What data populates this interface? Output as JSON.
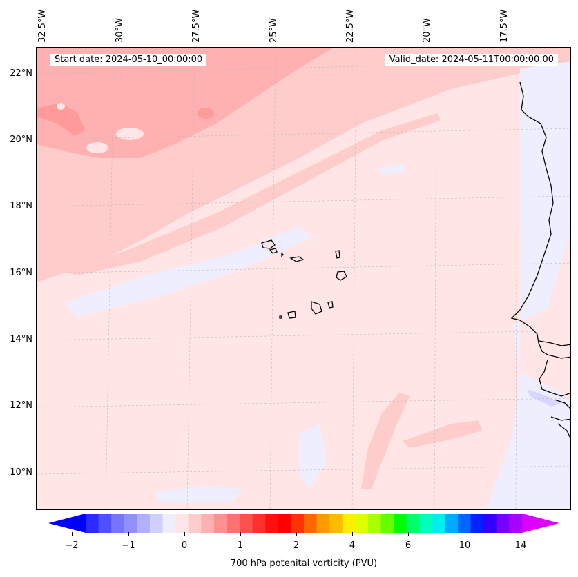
{
  "map": {
    "longitude_labels": [
      "32.5°W",
      "30°W",
      "27.5°W",
      "25°W",
      "22.5°W",
      "20°W",
      "17.5°W"
    ],
    "latitude_labels": [
      "22°N",
      "20°N",
      "18°N",
      "16°N",
      "14°N",
      "12°N",
      "10°N"
    ],
    "start_date_text": "Start date: 2024-05-10_00:00:00",
    "valid_date_text": "Valid_date: 2024-05-11T00:00:00.00",
    "gridlines": "dashed",
    "features": [
      "coastline",
      "islands"
    ]
  },
  "colorbar": {
    "title": "700 hPa potenital vorticity (PVU)",
    "tick_labels": [
      "−2",
      "−1",
      "0",
      "1",
      "2",
      "4",
      "6",
      "10",
      "14"
    ],
    "colors": [
      "#0000ff",
      "#2b2bff",
      "#5050ff",
      "#7575ff",
      "#9090ff",
      "#b0b0ff",
      "#d0d0ff",
      "#eeeeff",
      "#ffe5e5",
      "#ffcccc",
      "#ffb0b0",
      "#ff9090",
      "#ff7070",
      "#ff5050",
      "#ff3030",
      "#ff1010",
      "#ff0000",
      "#ff3300",
      "#ff6600",
      "#ff9900",
      "#ffbb00",
      "#ffee00",
      "#ddff00",
      "#aaff00",
      "#66ff00",
      "#00ff00",
      "#00ff66",
      "#00ffbb",
      "#00eeee",
      "#00aaff",
      "#0066ff",
      "#0022ff",
      "#3300ff",
      "#7700ff",
      "#aa00ff",
      "#dd00ff"
    ],
    "extend": "both"
  }
}
